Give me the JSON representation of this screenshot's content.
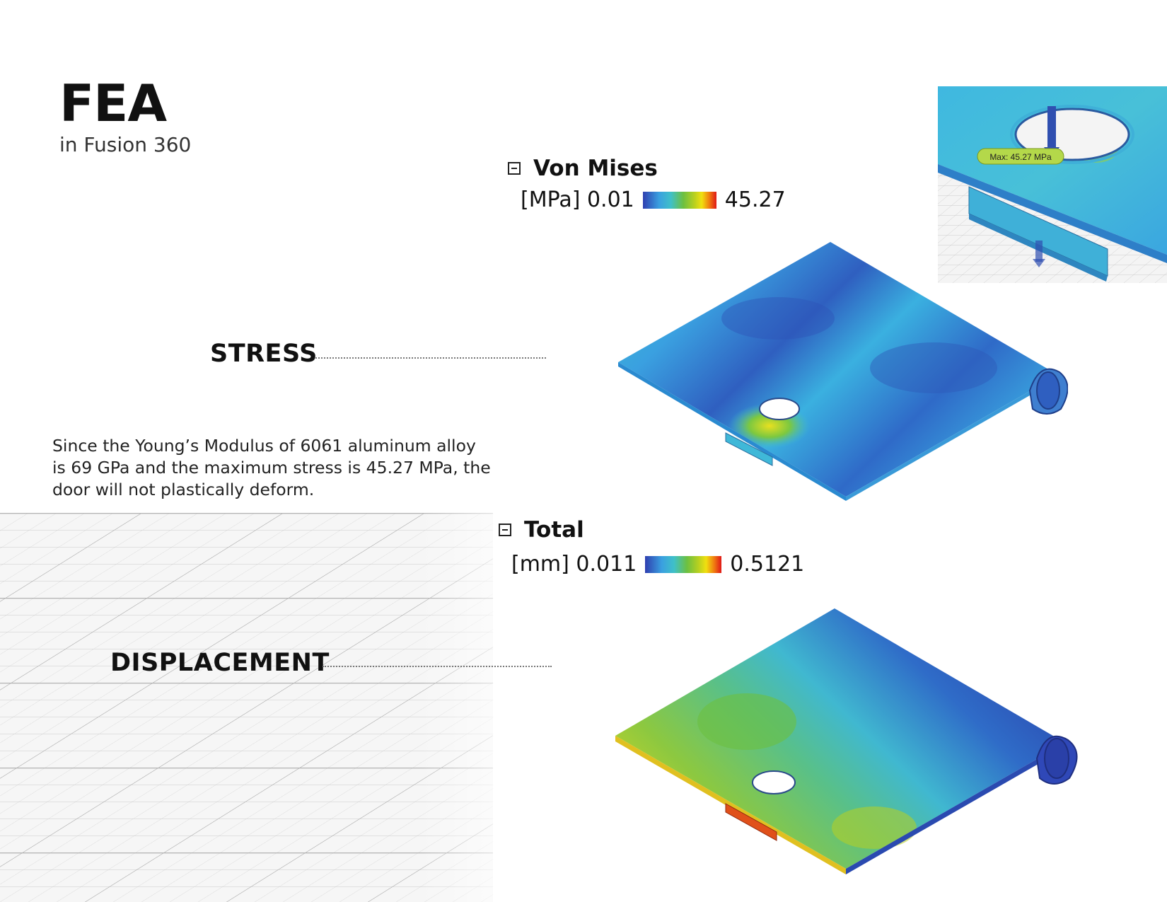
{
  "header": {
    "title": "FEA",
    "subtitle": "in Fusion 360"
  },
  "sections": {
    "stress": {
      "label": "STRESS"
    },
    "displacement": {
      "label": "DISPLACEMENT"
    }
  },
  "description": "Since the Young’s Modulus of 6061 aluminum alloy is 69 GPa and the maximum stress is 45.27 MPa, the door will not plastically deform.",
  "stress_legend": {
    "title": "Von Mises",
    "unit": "[MPa]",
    "min": "0.01",
    "max": "45.27"
  },
  "displacement_legend": {
    "title": "Total",
    "unit": "[mm]",
    "min": "0.011",
    "max": "0.5121"
  },
  "inset": {
    "probe_label": "Max: 45.27 MPa"
  },
  "colors": {
    "scale_low": "#2f3fb0",
    "scale_mid": "#6dc040",
    "scale_high": "#e01818"
  }
}
